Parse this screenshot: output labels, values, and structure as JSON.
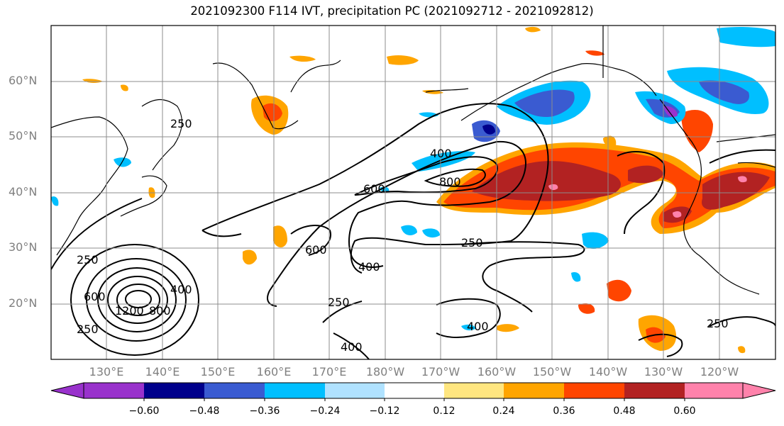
{
  "title": "2021092300 F114 IVT, precipitation PC (2021092712 - 2021092812)",
  "latitude_labels": [
    "60°N",
    "50°N",
    "40°N",
    "30°N",
    "20°N"
  ],
  "longitude_labels": [
    "130°E",
    "140°E",
    "150°E",
    "160°E",
    "170°E",
    "180°W",
    "170°W",
    "160°W",
    "150°W",
    "140°W",
    "130°W",
    "120°W"
  ],
  "contour_labels": [
    "250",
    "400",
    "600",
    "800",
    "1200"
  ],
  "colorbar": {
    "tick_labels": [
      "−0.60",
      "−0.48",
      "−0.36",
      "−0.24",
      "−0.12",
      "0.12",
      "0.24",
      "0.36",
      "0.48",
      "0.60"
    ],
    "colors": [
      "#9932cc",
      "#00008b",
      "#3a5bd1",
      "#00bfff",
      "#b0e2ff",
      "#ffffff",
      "#ffe680",
      "#ffa500",
      "#ff4500",
      "#b22222",
      "#ff82ab"
    ]
  }
}
